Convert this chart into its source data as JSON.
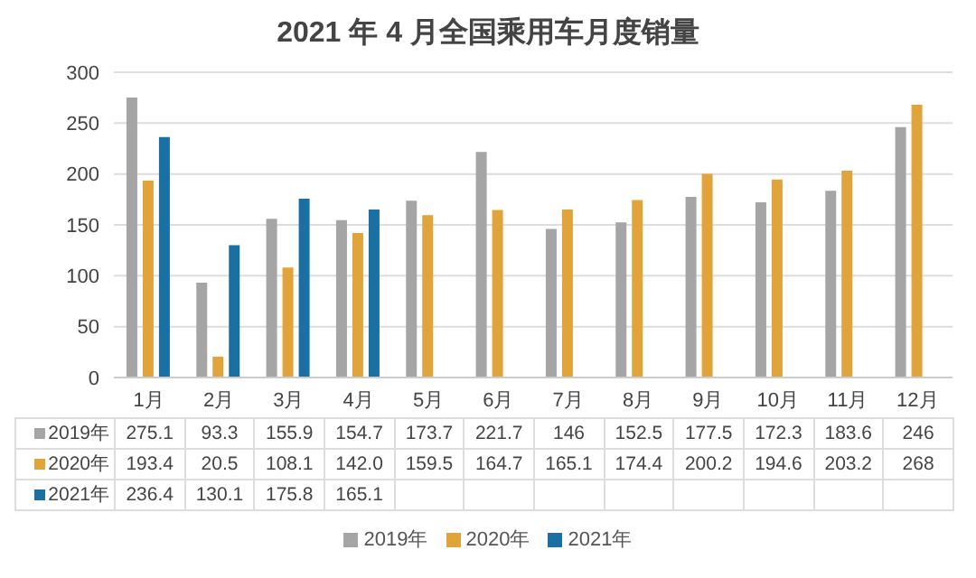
{
  "chart_data": {
    "type": "bar",
    "title": "2021 年 4 月全国乘用车月度销量",
    "categories": [
      "1月",
      "2月",
      "3月",
      "4月",
      "5月",
      "6月",
      "7月",
      "8月",
      "9月",
      "10月",
      "11月",
      "12月"
    ],
    "series": [
      {
        "name": "2019年",
        "color": "#a5a5a5",
        "values": [
          275.1,
          93.3,
          155.9,
          154.7,
          173.7,
          221.7,
          146,
          152.5,
          177.5,
          172.3,
          183.6,
          246
        ],
        "value_labels": [
          "275.1",
          "93.3",
          "155.9",
          "154.7",
          "173.7",
          "221.7",
          "146",
          "152.5",
          "177.5",
          "172.3",
          "183.6",
          "246"
        ]
      },
      {
        "name": "2020年",
        "color": "#e0a43a",
        "values": [
          193.4,
          20.5,
          108.1,
          142.0,
          159.5,
          164.7,
          165.1,
          174.4,
          200.2,
          194.6,
          203.2,
          268
        ],
        "value_labels": [
          "193.4",
          "20.5",
          "108.1",
          "142.0",
          "159.5",
          "164.7",
          "165.1",
          "174.4",
          "200.2",
          "194.6",
          "203.2",
          "268"
        ]
      },
      {
        "name": "2021年",
        "color": "#1a6fa3",
        "values": [
          236.4,
          130.1,
          175.8,
          165.1,
          null,
          null,
          null,
          null,
          null,
          null,
          null,
          null
        ],
        "value_labels": [
          "236.4",
          "130.1",
          "175.8",
          "165.1",
          null,
          null,
          null,
          null,
          null,
          null,
          null,
          null
        ]
      }
    ],
    "ylim": [
      0,
      300
    ],
    "yticks": [
      0,
      50,
      100,
      150,
      200,
      250,
      300
    ],
    "grid": "y",
    "legend": "bottom"
  }
}
